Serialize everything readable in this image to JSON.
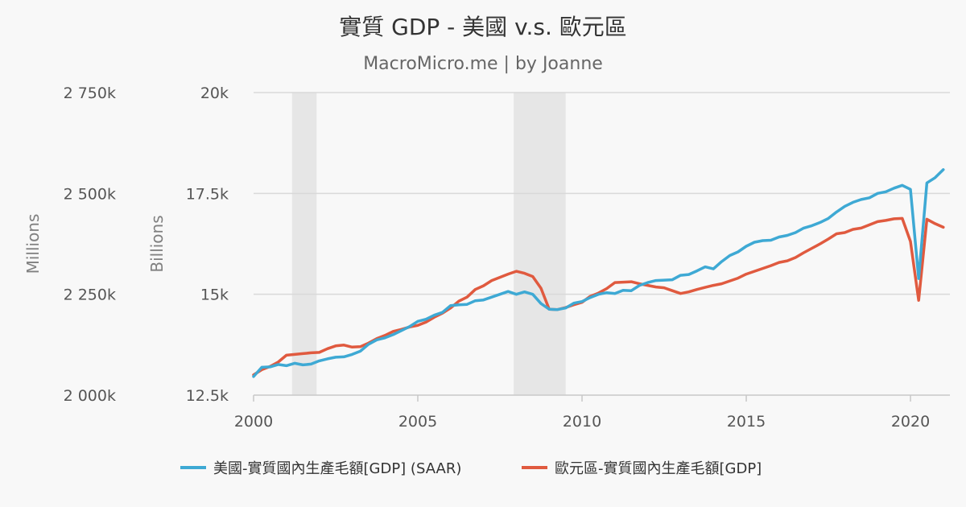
{
  "chart_data": {
    "type": "line",
    "title": "實質 GDP - 美國 v.s. 歐元區",
    "subtitle": "MacroMicro.me | by Joanne",
    "xlabel": "",
    "x_ticks": [
      "2000",
      "2005",
      "2010",
      "2015",
      "2020"
    ],
    "xlim": [
      2000,
      2021.2
    ],
    "left_axis": {
      "title": "Millions",
      "ticks": [
        "2 000k",
        "2 250k",
        "2 500k",
        "2 750k"
      ],
      "tick_values": [
        2000000,
        2250000,
        2500000,
        2750000
      ],
      "range": [
        2000000,
        2750000
      ]
    },
    "right_axis": {
      "title": "Billions",
      "ticks": [
        "12.5k",
        "15k",
        "17.5k",
        "20k"
      ],
      "tick_values": [
        12500,
        15000,
        17500,
        20000
      ],
      "range": [
        12500,
        20000
      ]
    },
    "recessions": [
      {
        "start": 2001.17,
        "end": 2001.92
      },
      {
        "start": 2007.92,
        "end": 2009.5
      }
    ],
    "series": [
      {
        "name": "美國-實質國內生產毛額[GDP] (SAAR)",
        "axis": "right",
        "color": "#3ea9d4",
        "x": [
          2000.0,
          2000.25,
          2000.5,
          2000.75,
          2001.0,
          2001.25,
          2001.5,
          2001.75,
          2002.0,
          2002.25,
          2002.5,
          2002.75,
          2003.0,
          2003.25,
          2003.5,
          2003.75,
          2004.0,
          2004.25,
          2004.5,
          2004.75,
          2005.0,
          2005.25,
          2005.5,
          2005.75,
          2006.0,
          2006.25,
          2006.5,
          2006.75,
          2007.0,
          2007.25,
          2007.5,
          2007.75,
          2008.0,
          2008.25,
          2008.5,
          2008.75,
          2009.0,
          2009.25,
          2009.5,
          2009.75,
          2010.0,
          2010.25,
          2010.5,
          2010.75,
          2011.0,
          2011.25,
          2011.5,
          2011.75,
          2012.0,
          2012.25,
          2012.5,
          2012.75,
          2013.0,
          2013.25,
          2013.5,
          2013.75,
          2014.0,
          2014.25,
          2014.5,
          2014.75,
          2015.0,
          2015.25,
          2015.5,
          2015.75,
          2016.0,
          2016.25,
          2016.5,
          2016.75,
          2017.0,
          2017.25,
          2017.5,
          2017.75,
          2018.0,
          2018.25,
          2018.5,
          2018.75,
          2019.0,
          2019.25,
          2019.5,
          2019.75,
          2020.0,
          2020.25,
          2020.5,
          2020.75,
          2021.0
        ],
        "values": [
          12960,
          13190,
          13200,
          13260,
          13230,
          13290,
          13250,
          13270,
          13350,
          13400,
          13440,
          13450,
          13510,
          13590,
          13760,
          13870,
          13920,
          14000,
          14100,
          14200,
          14330,
          14380,
          14480,
          14550,
          14720,
          14740,
          14750,
          14840,
          14860,
          14930,
          15000,
          15070,
          15000,
          15060,
          15000,
          14770,
          14630,
          14620,
          14660,
          14780,
          14820,
          14920,
          15000,
          15040,
          15020,
          15100,
          15090,
          15220,
          15290,
          15340,
          15350,
          15360,
          15470,
          15490,
          15580,
          15680,
          15630,
          15810,
          15960,
          16050,
          16190,
          16290,
          16330,
          16340,
          16420,
          16460,
          16530,
          16640,
          16700,
          16780,
          16880,
          17040,
          17180,
          17280,
          17350,
          17390,
          17500,
          17540,
          17630,
          17700,
          17600,
          15390,
          17760,
          17890,
          18090
        ]
      },
      {
        "name": "歐元區-實質國內生產毛額[GDP]",
        "axis": "left",
        "color": "#e05a3f",
        "x": [
          2000.0,
          2000.25,
          2000.5,
          2000.75,
          2001.0,
          2001.25,
          2001.5,
          2001.75,
          2002.0,
          2002.25,
          2002.5,
          2002.75,
          2003.0,
          2003.25,
          2003.5,
          2003.75,
          2004.0,
          2004.25,
          2004.5,
          2004.75,
          2005.0,
          2005.25,
          2005.5,
          2005.75,
          2006.0,
          2006.25,
          2006.5,
          2006.75,
          2007.0,
          2007.25,
          2007.5,
          2007.75,
          2008.0,
          2008.25,
          2008.5,
          2008.75,
          2009.0,
          2009.25,
          2009.5,
          2009.75,
          2010.0,
          2010.25,
          2010.5,
          2010.75,
          2011.0,
          2011.25,
          2011.5,
          2011.75,
          2012.0,
          2012.25,
          2012.5,
          2012.75,
          2013.0,
          2013.25,
          2013.5,
          2013.75,
          2014.0,
          2014.25,
          2014.5,
          2014.75,
          2015.0,
          2015.25,
          2015.5,
          2015.75,
          2016.0,
          2016.25,
          2016.5,
          2016.75,
          2017.0,
          2017.25,
          2017.5,
          2017.75,
          2018.0,
          2018.25,
          2018.5,
          2018.75,
          2019.0,
          2019.25,
          2019.5,
          2019.75,
          2020.0,
          2020.25,
          2020.5,
          2020.75,
          2021.0
        ],
        "values": [
          2050000,
          2063000,
          2071000,
          2082000,
          2099000,
          2101000,
          2103000,
          2105000,
          2106000,
          2115000,
          2122000,
          2124000,
          2119000,
          2120000,
          2129000,
          2140000,
          2148000,
          2158000,
          2163000,
          2169000,
          2173000,
          2181000,
          2193000,
          2203000,
          2216000,
          2233000,
          2243000,
          2262000,
          2271000,
          2284000,
          2292000,
          2300000,
          2307000,
          2302000,
          2294000,
          2265000,
          2213000,
          2212000,
          2217000,
          2224000,
          2230000,
          2245000,
          2253000,
          2264000,
          2279000,
          2280000,
          2281000,
          2276000,
          2272000,
          2268000,
          2266000,
          2259000,
          2252000,
          2256000,
          2262000,
          2267000,
          2272000,
          2276000,
          2283000,
          2290000,
          2300000,
          2307000,
          2314000,
          2321000,
          2329000,
          2333000,
          2341000,
          2353000,
          2364000,
          2375000,
          2387000,
          2400000,
          2403000,
          2411000,
          2414000,
          2422000,
          2430000,
          2433000,
          2437000,
          2438000,
          2381000,
          2235000,
          2436000,
          2425000,
          2416000
        ]
      }
    ]
  }
}
